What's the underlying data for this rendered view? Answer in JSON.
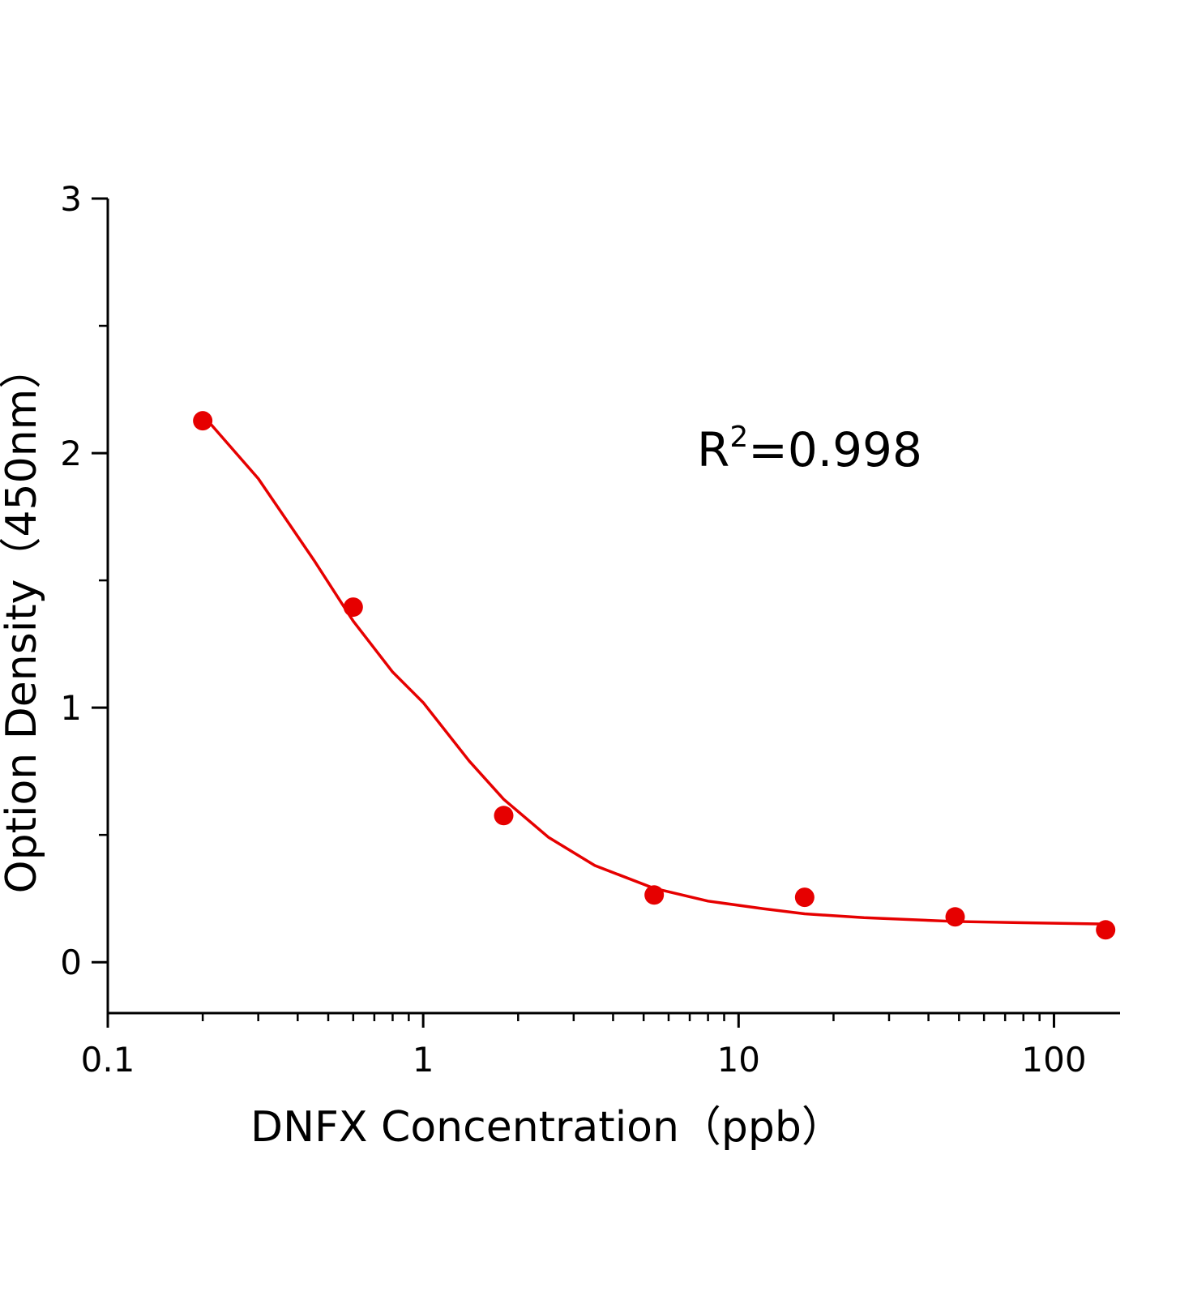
{
  "chart_data": {
    "type": "scatter",
    "x_label": "DNFX Concentration（ppb）",
    "y_label": "Option Density（450nm）",
    "annotation": [
      "R",
      "2",
      "=0.998"
    ],
    "log_x": true,
    "xlim": [
      0.1,
      162
    ],
    "xticks": [
      0.1,
      1,
      10,
      100
    ],
    "ylim": [
      -0.2,
      3
    ],
    "yticks": [
      0,
      1,
      2,
      3
    ],
    "series": [
      {
        "kind": "points",
        "color": "#e60000",
        "x": [
          0.2,
          0.6,
          1.8,
          5.4,
          16.2,
          48.6,
          145.8
        ],
        "values": [
          2.127,
          1.395,
          0.576,
          0.264,
          0.255,
          0.178,
          0.127
        ]
      },
      {
        "kind": "line",
        "color": "#e60000",
        "x": [
          0.2,
          0.3,
          0.45,
          0.6,
          0.8,
          1,
          1.4,
          1.8,
          2.5,
          3.5,
          5.4,
          8,
          12,
          16.2,
          25,
          48.6,
          80,
          145.8
        ],
        "values": [
          2.15,
          1.9,
          1.58,
          1.34,
          1.14,
          1.02,
          0.79,
          0.64,
          0.49,
          0.38,
          0.29,
          0.24,
          0.21,
          0.19,
          0.175,
          0.16,
          0.155,
          0.15
        ]
      }
    ]
  }
}
